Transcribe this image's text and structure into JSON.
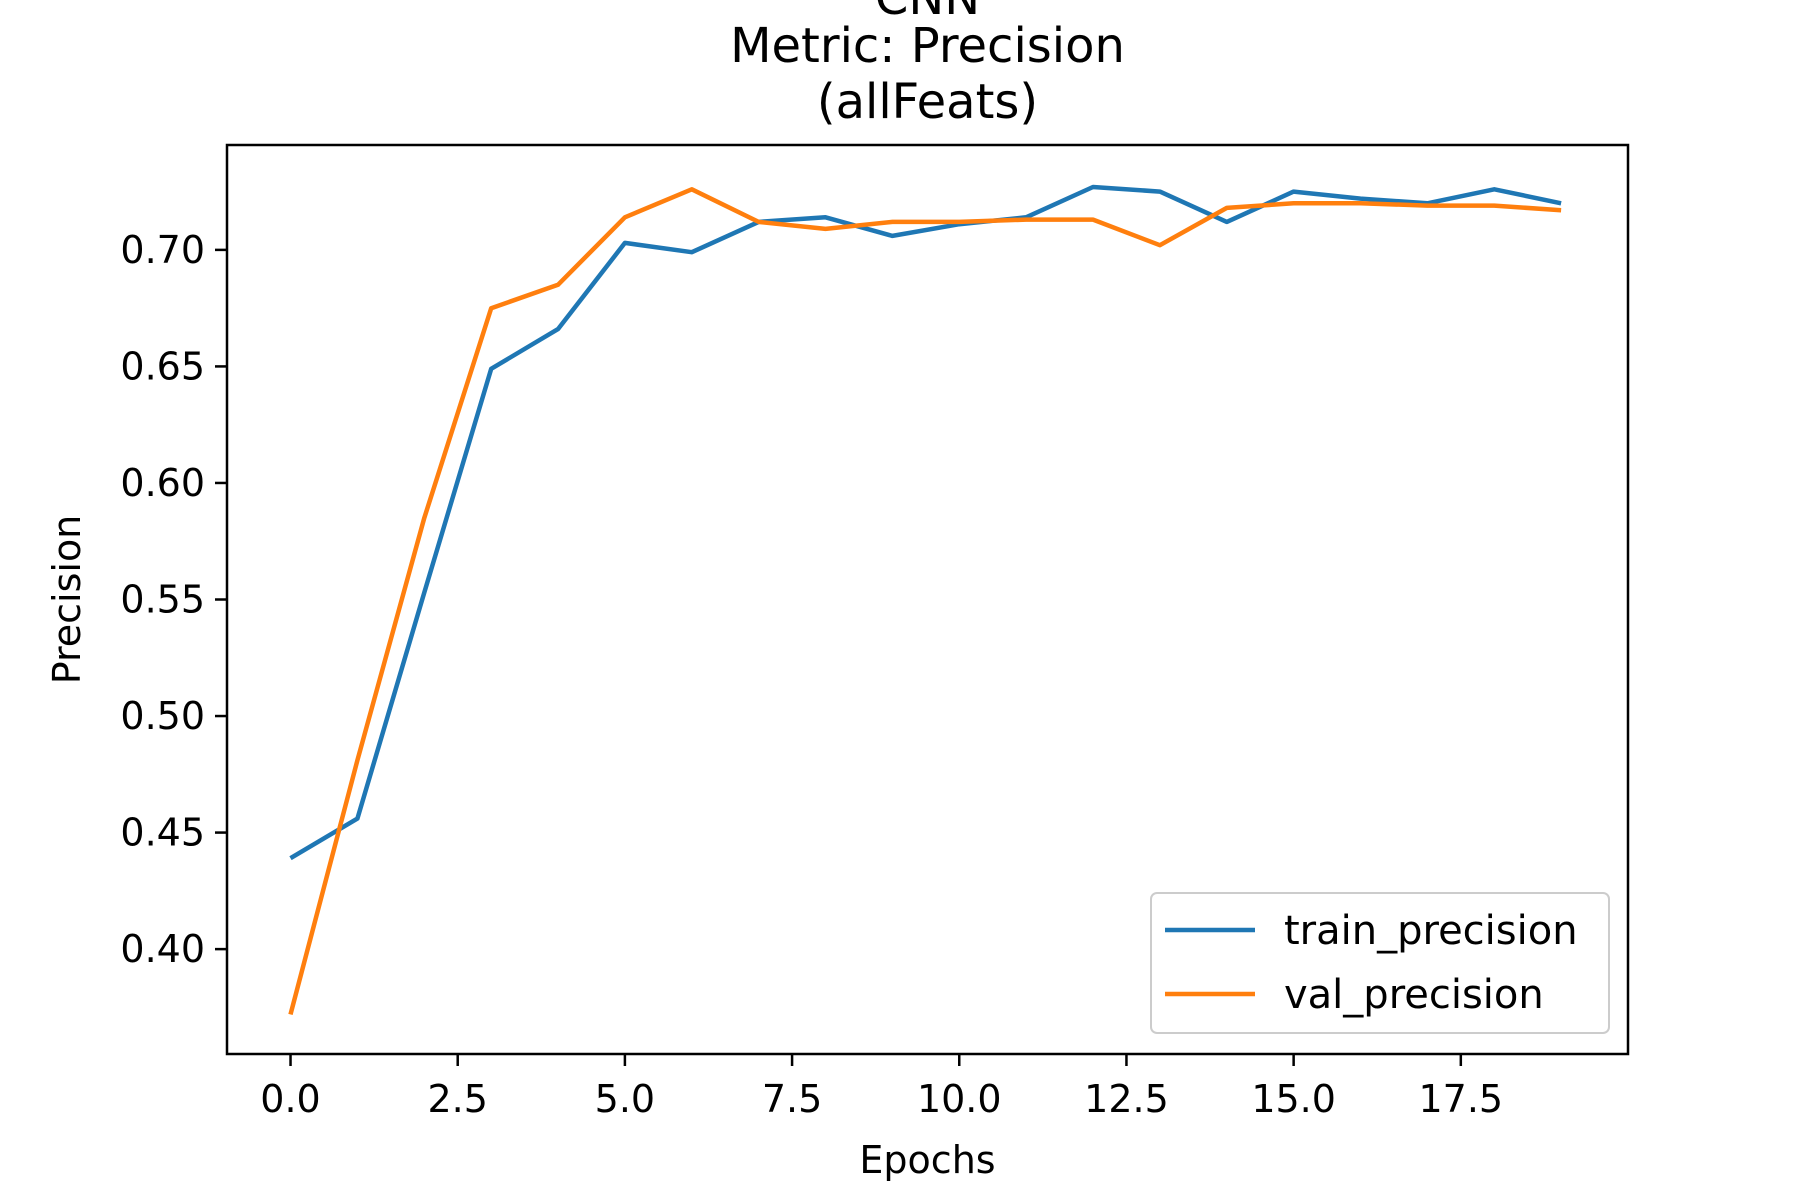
{
  "chart_data": {
    "type": "line",
    "title_lines": [
      "CNN",
      "Metric: Precision",
      "(allFeats)"
    ],
    "xlabel": "Epochs",
    "ylabel": "Precision",
    "xlim": [
      -0.95,
      20.0
    ],
    "ylim": [
      0.355,
      0.745
    ],
    "xticks": [
      0.0,
      2.5,
      5.0,
      7.5,
      10.0,
      12.5,
      15.0,
      17.5
    ],
    "xtick_labels": [
      "0.0",
      "2.5",
      "5.0",
      "7.5",
      "10.0",
      "12.5",
      "15.0",
      "17.5"
    ],
    "yticks": [
      0.4,
      0.45,
      0.5,
      0.55,
      0.6,
      0.65,
      0.7
    ],
    "ytick_labels": [
      "0.40",
      "0.45",
      "0.50",
      "0.55",
      "0.60",
      "0.65",
      "0.70"
    ],
    "legend_position": "lower-right",
    "grid": false,
    "x": [
      0,
      1,
      2,
      3,
      4,
      5,
      6,
      7,
      8,
      9,
      10,
      11,
      12,
      13,
      14,
      15,
      16,
      17,
      18,
      19
    ],
    "series": [
      {
        "name": "train_precision",
        "color": "#1f77b4",
        "values": [
          0.439,
          0.456,
          0.553,
          0.649,
          0.666,
          0.703,
          0.699,
          0.712,
          0.714,
          0.706,
          0.711,
          0.714,
          0.727,
          0.725,
          0.712,
          0.725,
          0.722,
          0.72,
          0.726,
          0.72
        ]
      },
      {
        "name": "val_precision",
        "color": "#ff7f0e",
        "values": [
          0.372,
          0.481,
          0.585,
          0.675,
          0.685,
          0.714,
          0.726,
          0.712,
          0.709,
          0.712,
          0.712,
          0.713,
          0.713,
          0.702,
          0.718,
          0.72,
          0.72,
          0.719,
          0.719,
          0.717
        ]
      }
    ]
  }
}
